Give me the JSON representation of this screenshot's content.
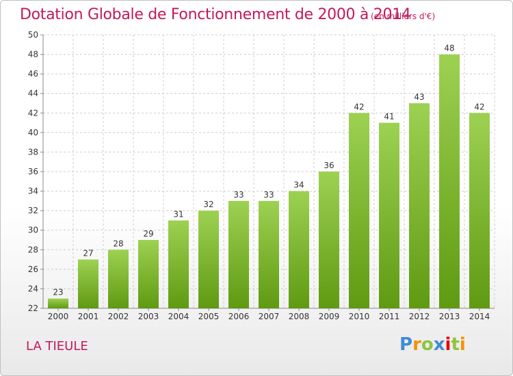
{
  "header": {
    "title": "Dotation Globale de Fonctionnement de 2000 à 2014",
    "subtitle": "(en milliers d'€)"
  },
  "footer": {
    "commune": "LA TIEULE",
    "logo_text": "Proxiti"
  },
  "colors": {
    "bar_top": "#9dd152",
    "bar_bottom": "#5f9a12",
    "title": "#c2185b",
    "grid": "#cccccc"
  },
  "chart_data": {
    "type": "bar",
    "title": "Dotation Globale de Fonctionnement de 2000 à 2014",
    "subtitle": "(en milliers d'€)",
    "xlabel": "",
    "ylabel": "",
    "categories": [
      "2000",
      "2001",
      "2002",
      "2003",
      "2004",
      "2005",
      "2006",
      "2007",
      "2008",
      "2009",
      "2010",
      "2011",
      "2012",
      "2013",
      "2014"
    ],
    "values": [
      23,
      27,
      28,
      29,
      31,
      32,
      33,
      33,
      34,
      36,
      42,
      41,
      43,
      48,
      42
    ],
    "ylim": [
      22,
      50
    ],
    "yticks": [
      22,
      24,
      26,
      28,
      30,
      32,
      34,
      36,
      38,
      40,
      42,
      44,
      46,
      48,
      50
    ],
    "grid": true,
    "legend": "none"
  }
}
